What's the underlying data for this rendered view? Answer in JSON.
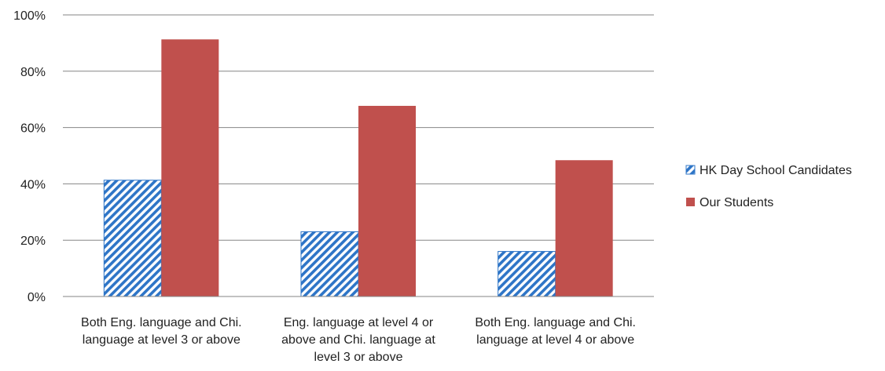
{
  "chart_data": {
    "type": "bar",
    "title": "",
    "xlabel": "",
    "ylabel": "",
    "categories": [
      [
        "Both Eng. language and Chi.",
        "language at level 3 or above"
      ],
      [
        "Eng. language at level 4 or",
        "above and Chi. language at",
        "level 3 or above"
      ],
      [
        "Both Eng. language and Chi.",
        "language at level 4 or above"
      ]
    ],
    "series": [
      {
        "name": "HK Day School Candidates",
        "values": [
          41.3,
          23.0,
          16.0
        ],
        "color": "#2e75c7",
        "fill": "hatched"
      },
      {
        "name": "Our Students",
        "values": [
          91.3,
          67.7,
          48.4
        ],
        "color": "#c0504d",
        "fill": "solid"
      }
    ],
    "ylim": [
      0,
      100
    ],
    "yticks": [
      0,
      20,
      40,
      60,
      80,
      100
    ],
    "ytick_labels": [
      "0%",
      "20%",
      "40%",
      "60%",
      "80%",
      "100%"
    ],
    "grid": true,
    "legend_position": "right"
  }
}
